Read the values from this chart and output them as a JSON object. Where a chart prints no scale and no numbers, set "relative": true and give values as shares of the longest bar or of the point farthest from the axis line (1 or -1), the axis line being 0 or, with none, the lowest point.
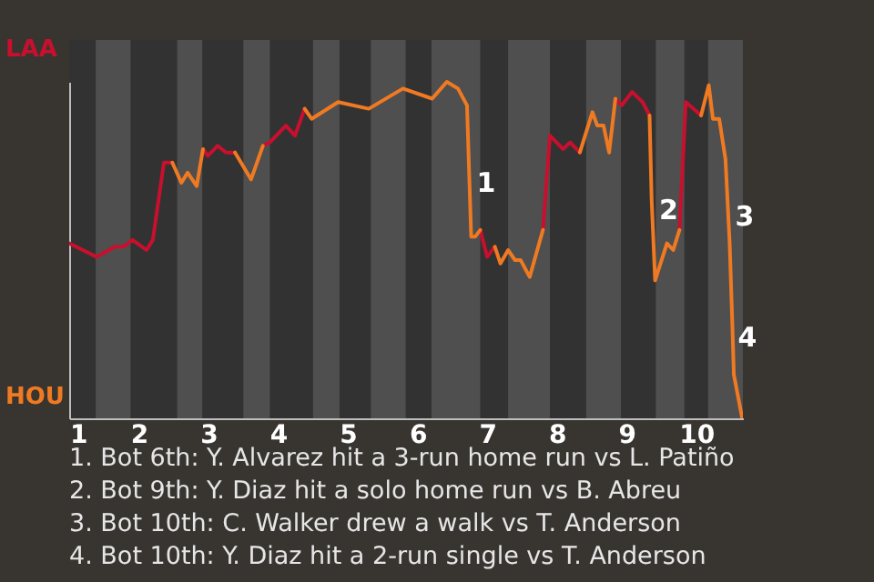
{
  "chart_data": {
    "type": "line",
    "relative": true,
    "x": [
      1,
      1.39,
      1.66,
      1.78,
      1.91,
      2.11,
      2.2,
      2.36,
      2.48,
      2.61,
      2.7,
      2.83,
      2.92,
      2.99,
      3.13,
      3.25,
      3.38,
      3.61,
      3.78,
      3.88,
      4.11,
      4.24,
      4.38,
      4.48,
      4.86,
      5.3,
      5.79,
      6.21,
      6.42,
      6.58,
      6.71,
      6.77,
      6.83,
      6.9,
      7,
      7.11,
      7.19,
      7.3,
      7.4,
      7.48,
      7.61,
      7.8,
      7.9,
      8.09,
      8.19,
      8.33,
      8.51,
      8.58,
      8.67,
      8.75,
      8.84,
      8.93,
      9.08,
      9.23,
      9.33,
      9.36,
      9.41,
      9.58,
      9.67,
      9.76,
      9.85,
      10.07,
      10.18,
      10.24,
      10.33,
      10.42,
      10.48,
      10.52,
      10.54,
      10.66
    ],
    "series": [
      {
        "color": "#c8102e",
        "values": [
          0.52,
          0.48,
          0.51,
          0.51,
          0.53,
          0.5,
          0.53,
          0.76,
          0.76,
          null,
          null,
          null,
          0.8,
          0.78,
          0.81,
          0.79,
          0.79,
          null,
          0.81,
          0.82,
          0.87,
          0.84,
          0.92,
          null,
          null,
          null,
          null,
          null,
          null,
          null,
          null,
          null,
          null,
          0.56,
          0.48,
          0.51,
          null,
          null,
          null,
          null,
          null,
          0.56,
          0.84,
          0.8,
          0.82,
          0.79,
          null,
          null,
          null,
          null,
          0.95,
          0.93,
          0.97,
          0.94,
          0.9,
          null,
          null,
          null,
          null,
          0.56,
          0.94,
          0.9,
          null,
          null,
          null,
          null,
          null,
          null,
          null,
          null
        ]
      },
      {
        "color": "#f07a22",
        "values": [
          null,
          null,
          null,
          null,
          null,
          null,
          null,
          null,
          0.76,
          0.7,
          0.73,
          0.69,
          0.8,
          null,
          null,
          null,
          0.79,
          0.71,
          0.81,
          null,
          null,
          null,
          0.92,
          0.89,
          0.94,
          0.92,
          0.98,
          0.95,
          1,
          0.98,
          0.93,
          0.54,
          0.54,
          0.56,
          null,
          0.51,
          0.46,
          0.5,
          0.47,
          0.47,
          0.42,
          0.56,
          null,
          null,
          null,
          0.79,
          0.91,
          0.87,
          0.87,
          0.79,
          0.95,
          null,
          null,
          null,
          0.9,
          0.65,
          0.41,
          0.52,
          0.5,
          0.56,
          null,
          0.9,
          0.99,
          0.89,
          0.89,
          0.77,
          0.52,
          0.27,
          0.13,
          0
        ]
      }
    ],
    "xlim": [
      1,
      10.67
    ],
    "xticks": [
      1,
      2,
      3,
      4,
      5,
      6,
      7,
      8,
      9,
      10
    ],
    "line_style": "solid",
    "bands": [
      {
        "axis": "x",
        "from": 1.38,
        "to": 1.88,
        "color": "#4f4f4f"
      },
      {
        "axis": "x",
        "from": 2.55,
        "to": 2.91,
        "color": "#4f4f4f"
      },
      {
        "axis": "x",
        "from": 3.5,
        "to": 3.88,
        "color": "#4f4f4f"
      },
      {
        "axis": "x",
        "from": 4.5,
        "to": 4.88,
        "color": "#4f4f4f"
      },
      {
        "axis": "x",
        "from": 5.33,
        "to": 5.83,
        "color": "#4f4f4f"
      },
      {
        "axis": "x",
        "from": 6.2,
        "to": 6.9,
        "color": "#4f4f4f"
      },
      {
        "axis": "x",
        "from": 7.3,
        "to": 7.9,
        "color": "#4f4f4f"
      },
      {
        "axis": "x",
        "from": 8.42,
        "to": 8.92,
        "color": "#4f4f4f"
      },
      {
        "axis": "x",
        "from": 9.42,
        "to": 9.83,
        "color": "#4f4f4f"
      },
      {
        "axis": "x",
        "from": 10.17,
        "to": 10.67,
        "color": "#4f4f4f"
      }
    ],
    "annotations": [
      "LAA",
      "HOU",
      {
        "text": "1",
        "x": 6.77,
        "y": 0.7
      },
      {
        "text": "2",
        "x": 9.39,
        "y": 0.62
      },
      {
        "text": "3",
        "x": 10.48,
        "y": 0.6
      },
      {
        "text": "4",
        "x": 10.52,
        "y": 0.24
      },
      "1. Bot 6th: Y. Alvarez hit a 3-run home run vs L. Patiño",
      "2. Bot 9th: Y. Diaz hit a solo home run vs B. Abreu",
      "3. Bot 10th: C. Walker drew a walk vs T. Anderson",
      "4. Bot 10th: Y. Diaz hit a 2-run single vs T. Anderson"
    ]
  }
}
